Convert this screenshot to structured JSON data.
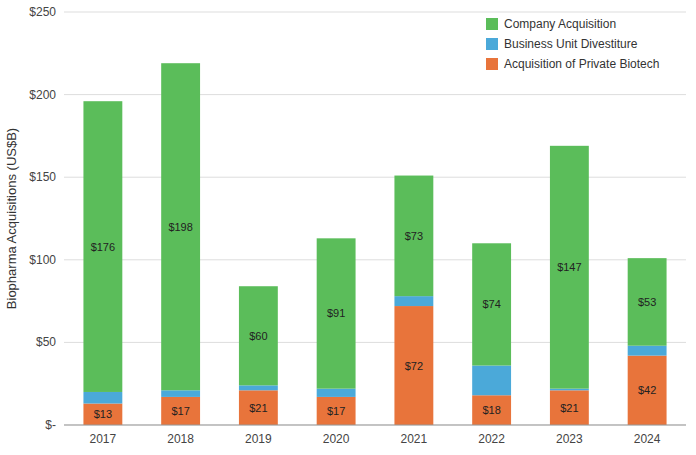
{
  "chart_data": {
    "type": "bar",
    "stacked": true,
    "ylabel": "Biopharma Acquisitions (US$B)",
    "categories": [
      "2017",
      "2018",
      "2019",
      "2020",
      "2021",
      "2022",
      "2023",
      "2024"
    ],
    "series": [
      {
        "name": "Acquisition of Private Biotech",
        "color": "#E8743B",
        "values": [
          13,
          17,
          21,
          17,
          72,
          18,
          21,
          42
        ],
        "data_labels": true,
        "value_labels": [
          "$13",
          "$17",
          "$21",
          "$17",
          "$72",
          "$18",
          "$21",
          "$42"
        ]
      },
      {
        "name": "Business Unit Divestiture",
        "color": "#4BA9D9",
        "values": [
          7,
          4,
          3,
          5,
          6,
          18,
          1,
          6
        ]
      },
      {
        "name": "Company Acquisition",
        "color": "#5BBD5A",
        "values": [
          176,
          198,
          60,
          91,
          73,
          74,
          147,
          53
        ],
        "data_labels": true,
        "value_labels": [
          "$176",
          "$198",
          "$60",
          "$91",
          "$73",
          "$74",
          "$147",
          "$53"
        ]
      }
    ],
    "ylim": [
      0,
      250
    ],
    "yticks": [
      {
        "value": 0,
        "label": "$-"
      },
      {
        "value": 50,
        "label": "$50"
      },
      {
        "value": 100,
        "label": "$100"
      },
      {
        "value": 150,
        "label": "$150"
      },
      {
        "value": 200,
        "label": "$200"
      },
      {
        "value": 250,
        "label": "$250"
      }
    ],
    "grid": true,
    "legend": "upper right"
  }
}
